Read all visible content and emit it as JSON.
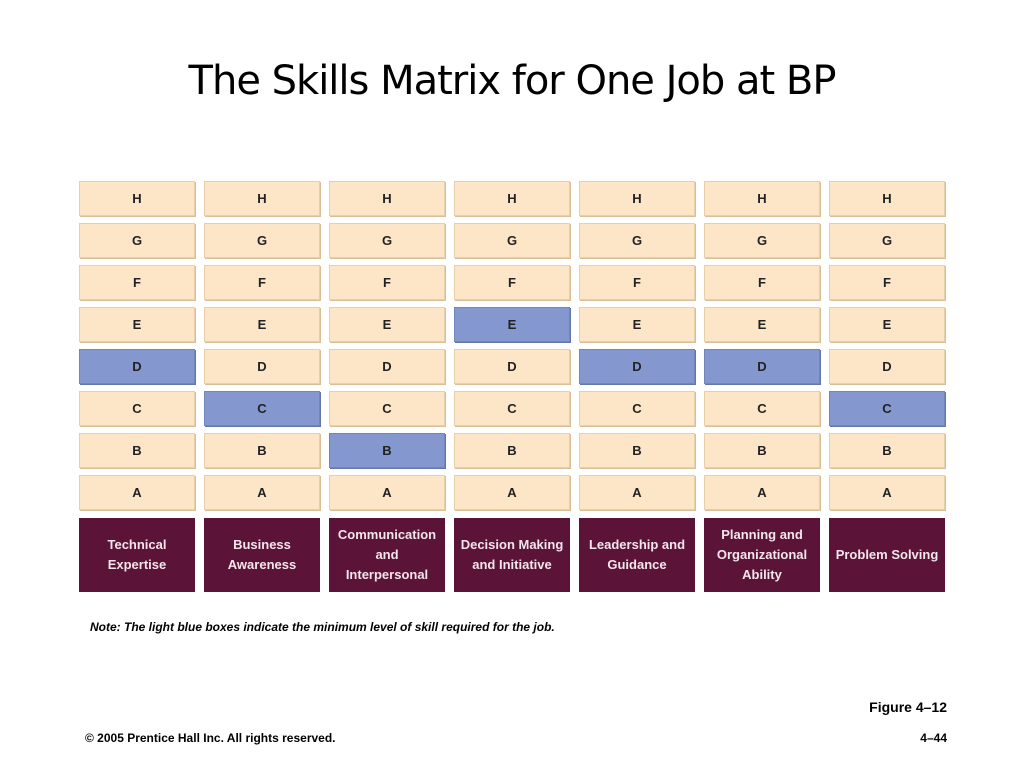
{
  "title": "The Skills Matrix for One Job at BP",
  "levels": [
    "H",
    "G",
    "F",
    "E",
    "D",
    "C",
    "B",
    "A"
  ],
  "colors": {
    "cell": "#fde6c8",
    "required": "#8498cf",
    "label_bg": "#5c1338"
  },
  "skills": [
    {
      "label": "Technical Expertise",
      "required": "D"
    },
    {
      "label": "Business Awareness",
      "required": "C"
    },
    {
      "label": "Communication and Interpersonal",
      "required": "B"
    },
    {
      "label": "Decision Making and Initiative",
      "required": "E"
    },
    {
      "label": "Leadership and Guidance",
      "required": "D"
    },
    {
      "label": "Planning and Organizational Ability",
      "required": "D"
    },
    {
      "label": "Problem Solving",
      "required": "C"
    }
  ],
  "note": "Note: The light blue boxes indicate the minimum level of skill required for the job.",
  "figure": "Figure 4–12",
  "copyright": "© 2005 Prentice Hall Inc. All rights reserved.",
  "page": "4–44"
}
